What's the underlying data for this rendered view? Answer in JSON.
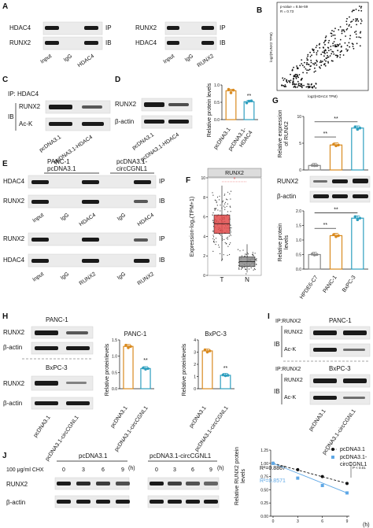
{
  "panels": {
    "A": {
      "letter": "A",
      "left": {
        "rows": [
          "HDAC4",
          "RUNX2"
        ],
        "tags": [
          "IP",
          "IB"
        ],
        "lanes": [
          "Input",
          "IgG",
          "HDAC4"
        ]
      },
      "right": {
        "rows": [
          "RUNX2",
          "HDAC4"
        ],
        "tags": [
          "IP",
          "IB"
        ],
        "lanes": [
          "Input",
          "IgG",
          "RUNX2"
        ]
      }
    },
    "B": {
      "letter": "B",
      "stat1": "p-value = 8.5e-59",
      "stat2": "R = 0.73",
      "ylabel": "log2(RUNX2 TPM)",
      "xlabel": "log2(HDAC4 TPM)"
    },
    "C": {
      "letter": "C",
      "ip": "IP: HDAC4",
      "ib": "IB",
      "rows": [
        "RUNX2",
        "Ac-K"
      ],
      "lanes": [
        "pcDNA3.1",
        "pcDNA3.1-HDAC4"
      ]
    },
    "D": {
      "letter": "D",
      "rows": [
        "RUNX2",
        "β-actin"
      ],
      "lanes": [
        "pcDNA3.1",
        "pcDNA3.1-HDAC4"
      ],
      "ylabel": "Relative protein levels",
      "xlabels": [
        "pcDNA3.1",
        "pcDNA3.1-",
        "HDAC4"
      ],
      "sig": "**"
    },
    "E": {
      "letter": "E",
      "grp1": "PANC-1",
      "grp1b": "pcDNA3.1",
      "grp2": "pcDNA3.1-",
      "grp2b": "circCGNL1",
      "top_rows": [
        "HDAC4",
        "RUNX2"
      ],
      "bot_rows": [
        "RUNX2",
        "HDAC4"
      ],
      "tags": [
        "IP",
        "IB"
      ],
      "top_lanes": [
        "Input",
        "IgG",
        "HDAC4",
        "IgG",
        "HDAC4"
      ],
      "bot_lanes": [
        "Input",
        "IgG",
        "RUNX2",
        "IgG",
        "RUNX2"
      ]
    },
    "F": {
      "letter": "F",
      "title": "RUNX2",
      "ylabel": "Expression-log₂(TPM+1)",
      "xcats": [
        "T",
        "N"
      ],
      "yticks": [
        "0",
        "2",
        "4",
        "6",
        "8",
        "10"
      ],
      "sig": "*"
    },
    "G": {
      "letter": "G",
      "ylabel1": "Relative expression",
      "ylabel1b": "of RUNX2",
      "yticks1": [
        "0",
        "5",
        "10"
      ],
      "sig1": "**",
      "sig2": "**",
      "rows": [
        "RUNX2",
        "β-actin"
      ],
      "ylabel2": "Relative protein",
      "ylabel2b": "levels",
      "yticks2": [
        "0.0",
        "0.5",
        "1.0",
        "1.5",
        "2.0"
      ],
      "xcats": [
        "HPDE6-C7",
        "PANC-1",
        "BxPC-3"
      ]
    },
    "H": {
      "letter": "H",
      "cell1": "PANC-1",
      "cell2": "BxPC-3",
      "rows": [
        "RUNX2",
        "β-actin"
      ],
      "lanes": [
        "pcDNA3.1",
        "pcDNA3.1-circCGNL1"
      ],
      "chart1_title": "PANC-1",
      "chart2_title": "BxPC-3",
      "ylabel1": "Relative proteinlevels",
      "ylabel2": "Relative proteinlevels",
      "yticks1": [
        "0.0",
        "0.5",
        "1.0",
        "1.5"
      ],
      "yticks2": [
        "0",
        "1",
        "2",
        "3",
        "4"
      ],
      "sig": "**"
    },
    "I": {
      "letter": "I",
      "ip": "IP:RUNX2",
      "cell1": "PANC-1",
      "cell2": "BxPC-3",
      "ib": "IB",
      "rows": [
        "RUNX2",
        "Ac-K"
      ],
      "lanes": [
        "pcDNA3.1",
        "pcDNA3.1-circCGNL1"
      ]
    },
    "J": {
      "letter": "J",
      "chx": "100 μg/ml CHX",
      "grp1": "pcDNA3.1",
      "grp2": "pcDNA3.1-circCGNL1",
      "unit": "(h)",
      "times": [
        "0",
        "3",
        "6",
        "9"
      ],
      "rows": [
        "RUNX2",
        "β-actin"
      ],
      "ylabel": "Relative RUNX2 protein",
      "ylabel2": "levels",
      "yticks": [
        "0.00",
        "0.25",
        "0.50",
        "0.75",
        "1.00",
        "1.25"
      ],
      "xticks": [
        "0",
        "3",
        "6",
        "9"
      ],
      "xunit": "(h)",
      "legend": [
        "pcDNA3.1",
        "pcDNA3.1-",
        "circCGNL1"
      ],
      "r2a": "R²=0.8867",
      "r2b": "R²=0.8571",
      "pval": "P < 0.01"
    }
  },
  "colors": {
    "accent_orange": "#d98a1f",
    "accent_teal": "#2e9fbf",
    "accent_green": "#3aa58c",
    "accent_grey": "#8a8a8a",
    "box_red": "#e24b4b",
    "box_grey": "#8c8c8c",
    "fit_blue": "#5fa8e6"
  },
  "chart_data": [
    {
      "id": "D",
      "type": "bar",
      "categories": [
        "pcDNA3.1",
        "pcDNA3.1-HDAC4"
      ],
      "values": [
        1.0,
        0.62
      ],
      "points": [
        [
          1.05,
          0.93,
          1.02
        ],
        [
          0.58,
          0.64,
          0.65
        ]
      ],
      "ylabel": "Relative protein levels",
      "ylim": [
        0,
        1.2
      ]
    },
    {
      "id": "G1",
      "type": "bar",
      "categories": [
        "HPDE6-C7",
        "PANC-1",
        "BxPC-3"
      ],
      "values": [
        1.0,
        5.6,
        9.4
      ],
      "ylabel": "Relative expression of RUNX2",
      "ylim": [
        0,
        12
      ]
    },
    {
      "id": "G2",
      "type": "bar",
      "categories": [
        "HPDE6-C7",
        "PANC-1",
        "BxPC-3"
      ],
      "values": [
        0.5,
        1.15,
        1.75
      ],
      "ylabel": "Relative protein levels",
      "ylim": [
        0,
        2.0
      ]
    },
    {
      "id": "H1",
      "type": "bar",
      "title": "PANC-1",
      "categories": [
        "pcDNA3.1",
        "pcDNA3.1-circCGNL1"
      ],
      "values": [
        1.3,
        0.62
      ],
      "ylabel": "Relative proteinlevels",
      "ylim": [
        0,
        1.5
      ]
    },
    {
      "id": "H2",
      "type": "bar",
      "title": "BxPC-3",
      "categories": [
        "pcDNA3.1",
        "pcDNA3.1-circCGNL1"
      ],
      "values": [
        3.1,
        1.1
      ],
      "ylabel": "Relative proteinlevels",
      "ylim": [
        0,
        4
      ]
    },
    {
      "id": "J",
      "type": "line",
      "x": [
        0,
        3,
        6,
        9
      ],
      "series": [
        {
          "name": "pcDNA3.1",
          "values": [
            1.0,
            0.88,
            0.75,
            0.62
          ]
        },
        {
          "name": "pcDNA3.1-circCGNL1",
          "values": [
            1.0,
            0.72,
            0.58,
            0.44
          ]
        }
      ],
      "ylabel": "Relative RUNX2 protein levels",
      "ylim": [
        0,
        1.25
      ]
    }
  ]
}
